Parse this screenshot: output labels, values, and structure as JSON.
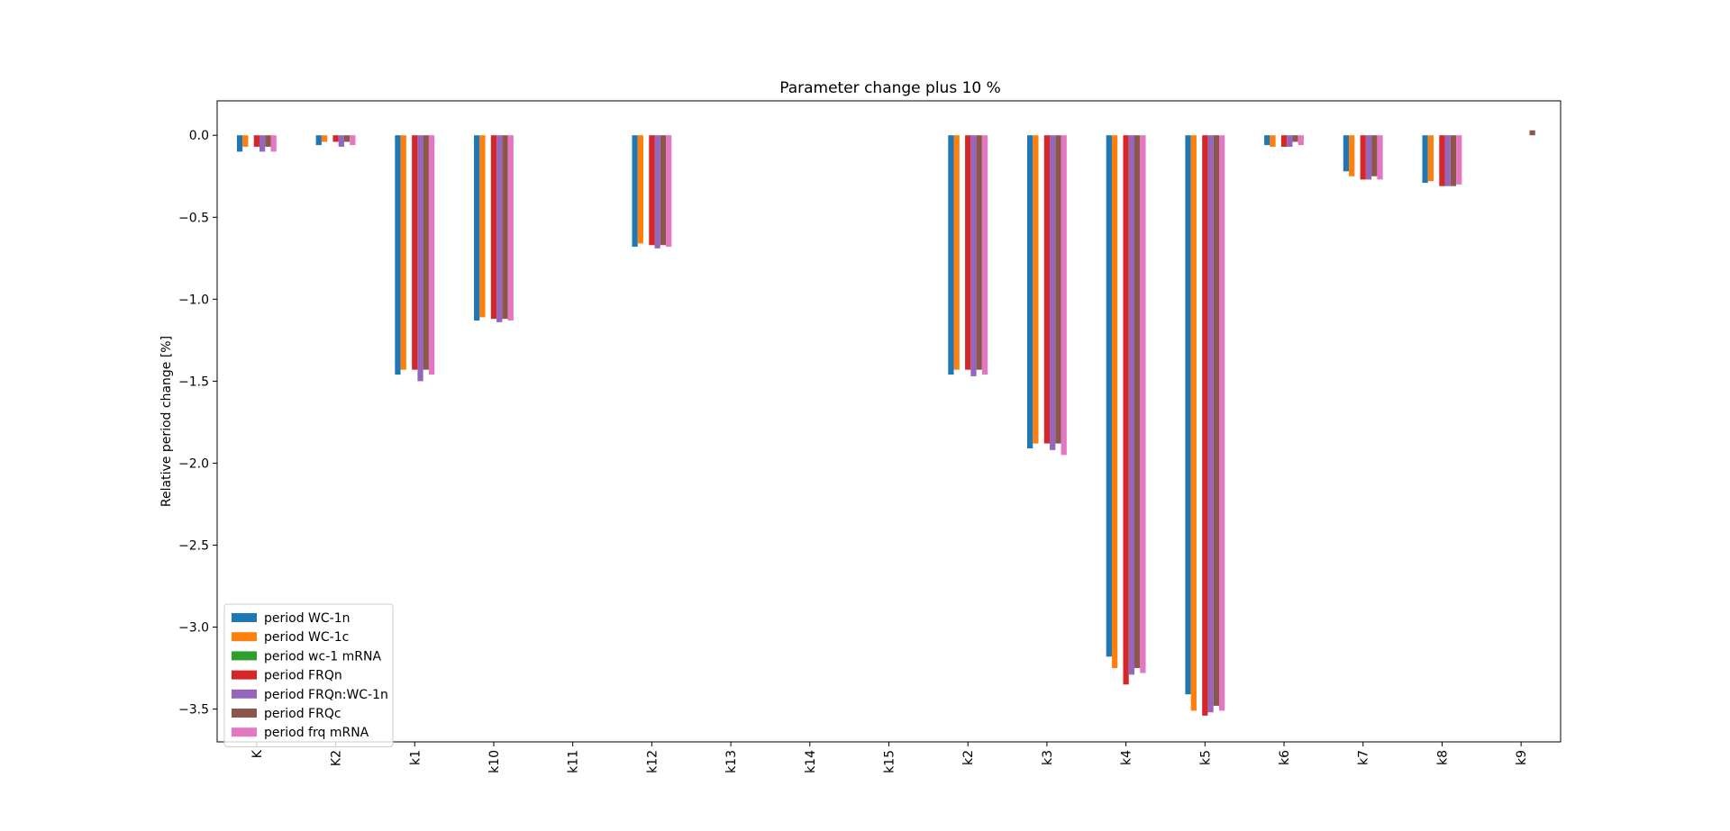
{
  "chart_data": {
    "type": "bar",
    "title": "Parameter change plus 10 %",
    "xlabel": "",
    "ylabel": "Relative period change [%]",
    "ylim": [
      -3.7,
      0.21
    ],
    "yticks": [
      0.0,
      -0.5,
      -1.0,
      -1.5,
      -2.0,
      -2.5,
      -3.0,
      -3.5
    ],
    "ytick_labels": [
      "0.0",
      "−0.5",
      "−1.0",
      "−1.5",
      "−2.0",
      "−2.5",
      "−3.0",
      "−3.5"
    ],
    "grid": false,
    "legend_position": "lower-left",
    "categories": [
      "K",
      "K2",
      "k1",
      "k10",
      "k11",
      "k12",
      "k13",
      "k14",
      "k15",
      "k2",
      "k3",
      "k4",
      "k5",
      "k6",
      "k7",
      "k8",
      "k9"
    ],
    "series": [
      {
        "name": "period WC-1n",
        "color": "#1f77b4",
        "values": [
          -0.1,
          -0.06,
          -1.46,
          -1.13,
          0,
          -0.68,
          0,
          0,
          0,
          -1.46,
          -1.91,
          -3.18,
          -3.41,
          -0.06,
          -0.22,
          -0.29,
          0
        ]
      },
      {
        "name": "period WC-1c",
        "color": "#ff7f0e",
        "values": [
          -0.07,
          -0.04,
          -1.43,
          -1.11,
          0,
          -0.66,
          0,
          0,
          0,
          -1.43,
          -1.88,
          -3.25,
          -3.51,
          -0.07,
          -0.25,
          -0.28,
          0
        ]
      },
      {
        "name": "period wc-1 mRNA",
        "color": "#2ca02c",
        "values": [
          0,
          0,
          0,
          0,
          0,
          0,
          0,
          0,
          0,
          0,
          0,
          0,
          0,
          0,
          0,
          0,
          0
        ]
      },
      {
        "name": "period FRQn",
        "color": "#d62728",
        "values": [
          -0.07,
          -0.04,
          -1.43,
          -1.12,
          0,
          -0.67,
          0,
          0,
          0,
          -1.43,
          -1.88,
          -3.35,
          -3.54,
          -0.07,
          -0.27,
          -0.31,
          0
        ]
      },
      {
        "name": "period FRQn:WC-1n",
        "color": "#9467bd",
        "values": [
          -0.1,
          -0.07,
          -1.5,
          -1.14,
          0,
          -0.69,
          0,
          0,
          0,
          -1.47,
          -1.92,
          -3.29,
          -3.52,
          -0.07,
          -0.27,
          -0.31,
          0
        ]
      },
      {
        "name": "period FRQc",
        "color": "#8c564b",
        "values": [
          -0.07,
          -0.04,
          -1.43,
          -1.12,
          0,
          -0.67,
          0,
          0,
          0,
          -1.43,
          -1.88,
          -3.25,
          -3.48,
          -0.04,
          -0.25,
          -0.31,
          0.03
        ]
      },
      {
        "name": "period frq mRNA",
        "color": "#e377c2",
        "values": [
          -0.1,
          -0.06,
          -1.46,
          -1.13,
          0,
          -0.68,
          0,
          0,
          0,
          -1.46,
          -1.95,
          -3.28,
          -3.51,
          -0.06,
          -0.27,
          -0.3,
          0
        ]
      }
    ]
  }
}
